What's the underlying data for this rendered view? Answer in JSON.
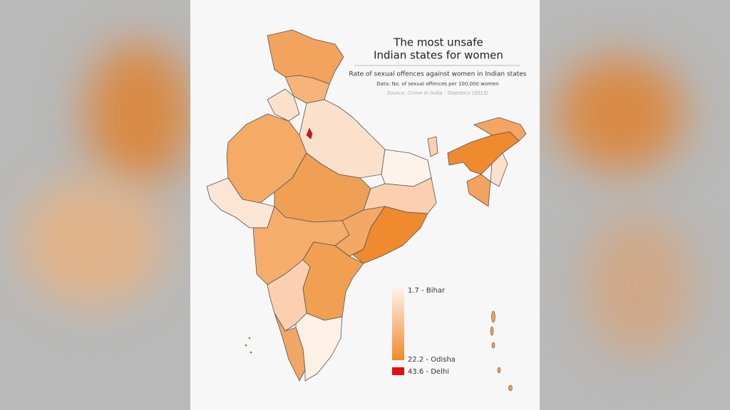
{
  "header": {
    "title_lines": [
      "The most unsafe",
      "Indian states for women"
    ],
    "subtitle": "Rate of sexual offences against women in Indian states",
    "data_note": "Data: No. of sexual offences per 100,000 women",
    "source": "Source: Crime in India - Statistics (2015)"
  },
  "legend": {
    "items": [
      {
        "label": "1.7 - Bihar"
      },
      {
        "label": "22.2 - Odisha"
      },
      {
        "label": "43.6 - Delhi"
      }
    ]
  }
}
